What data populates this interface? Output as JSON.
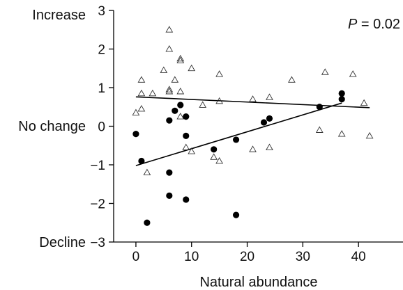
{
  "chart_data": {
    "type": "scatter",
    "title": "",
    "xlabel": "Natural abundance",
    "ylabel": "",
    "xlim": [
      -4,
      48
    ],
    "ylim": [
      -3,
      3
    ],
    "x_ticks": [
      0,
      10,
      20,
      30,
      40
    ],
    "y_ticks": [
      -3,
      -2,
      -1,
      0,
      1,
      2,
      3
    ],
    "x_tick_labels": [
      "0",
      "10",
      "20",
      "30",
      "40"
    ],
    "y_tick_labels": [
      "−3",
      "−2",
      "−1",
      "0",
      "1",
      "2",
      "3"
    ],
    "y_side_labels": {
      "increase": "Increase",
      "no_change": "No change",
      "decline": "Decline"
    },
    "annotation_p_letter": "P",
    "annotation_p_value": " = 0.02",
    "grid": false,
    "series": [
      {
        "marker": "open-triangle",
        "color": "#333333",
        "points": [
          [
            0,
            0.35
          ],
          [
            1,
            0.45
          ],
          [
            1,
            0.85
          ],
          [
            1,
            1.2
          ],
          [
            2,
            -1.2
          ],
          [
            3,
            0.85
          ],
          [
            5,
            1.45
          ],
          [
            6,
            2.5
          ],
          [
            6,
            2.0
          ],
          [
            6,
            0.95
          ],
          [
            6,
            0.9
          ],
          [
            7,
            1.2
          ],
          [
            8,
            1.75
          ],
          [
            8,
            1.7
          ],
          [
            8,
            0.9
          ],
          [
            8,
            0.25
          ],
          [
            9,
            -0.55
          ],
          [
            10,
            1.5
          ],
          [
            10,
            -0.65
          ],
          [
            12,
            0.55
          ],
          [
            14,
            -0.8
          ],
          [
            15,
            1.35
          ],
          [
            15,
            0.65
          ],
          [
            15,
            -0.9
          ],
          [
            21,
            0.7
          ],
          [
            21,
            -0.6
          ],
          [
            24,
            0.75
          ],
          [
            24,
            -0.55
          ],
          [
            28,
            1.2
          ],
          [
            33,
            -0.1
          ],
          [
            34,
            1.4
          ],
          [
            37,
            -0.2
          ],
          [
            39,
            1.35
          ],
          [
            41,
            0.6
          ],
          [
            42,
            -0.25
          ]
        ],
        "fit_line": [
          [
            0,
            0.76
          ],
          [
            42,
            0.48
          ]
        ]
      },
      {
        "marker": "filled-circle",
        "color": "#000000",
        "points": [
          [
            0,
            -0.2
          ],
          [
            1,
            -0.9
          ],
          [
            2,
            -2.5
          ],
          [
            6,
            0.15
          ],
          [
            6,
            -1.2
          ],
          [
            6,
            -1.8
          ],
          [
            7,
            0.4
          ],
          [
            8,
            0.55
          ],
          [
            9,
            -0.25
          ],
          [
            9,
            0.25
          ],
          [
            9,
            -1.9
          ],
          [
            14,
            -0.6
          ],
          [
            18,
            -0.35
          ],
          [
            18,
            -2.3
          ],
          [
            23,
            0.1
          ],
          [
            24,
            0.2
          ],
          [
            33,
            0.5
          ],
          [
            37,
            0.85
          ],
          [
            37,
            0.7
          ]
        ],
        "fit_line": [
          [
            0,
            -1.02
          ],
          [
            37,
            0.6
          ]
        ]
      }
    ]
  }
}
